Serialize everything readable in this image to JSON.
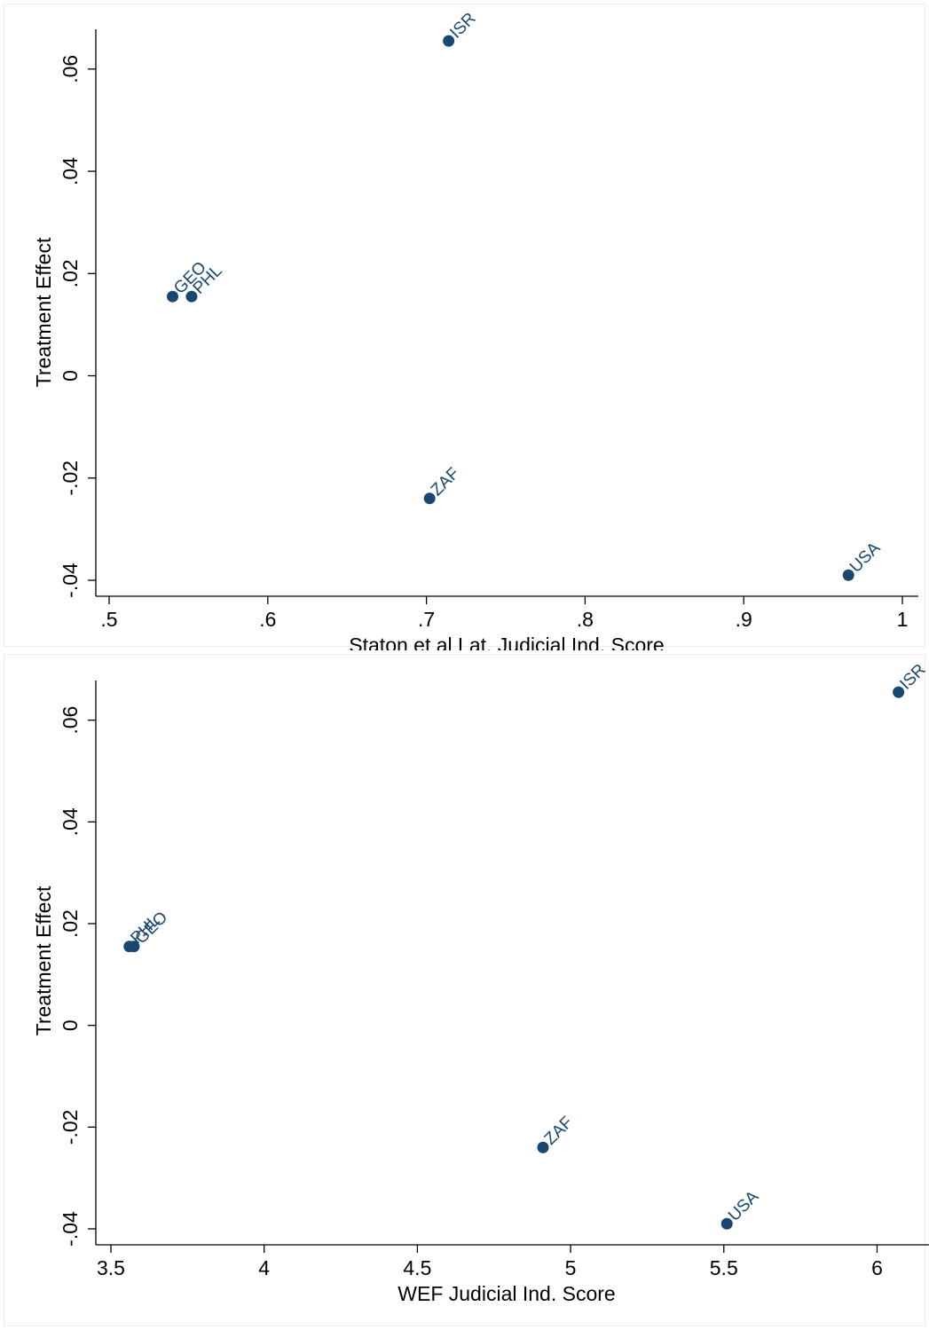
{
  "chart_data": [
    {
      "type": "scatter",
      "xlabel": "Staton et al Lat. Judicial Ind. Score",
      "ylabel": "Treatment Effect",
      "xlim": [
        0.5,
        1.0
      ],
      "ylim": [
        -0.04,
        0.065
      ],
      "x_ticks": [
        0.5,
        0.6,
        0.7,
        0.8,
        0.9,
        1.0
      ],
      "x_tick_labels": [
        ".5",
        ".6",
        ".7",
        ".8",
        ".9",
        "1"
      ],
      "y_ticks": [
        -0.04,
        -0.02,
        0,
        0.02,
        0.04,
        0.06
      ],
      "y_tick_labels": [
        "-.04",
        "-.02",
        "0",
        ".02",
        ".04",
        ".06"
      ],
      "marker_color": "#1a476f",
      "points": [
        {
          "label": "ISR",
          "x": 0.714,
          "y": 0.0655
        },
        {
          "label": "GEO",
          "x": 0.54,
          "y": 0.0155
        },
        {
          "label": "PHL",
          "x": 0.552,
          "y": 0.0155
        },
        {
          "label": "ZAF",
          "x": 0.702,
          "y": -0.024
        },
        {
          "label": "USA",
          "x": 0.966,
          "y": -0.039
        }
      ]
    },
    {
      "type": "scatter",
      "xlabel": "WEF Judicial Ind. Score",
      "ylabel": "Treatment Effect",
      "xlim": [
        3.5,
        6.1
      ],
      "ylim": [
        -0.04,
        0.065
      ],
      "x_ticks": [
        3.5,
        4,
        4.5,
        5,
        5.5,
        6
      ],
      "x_tick_labels": [
        "3.5",
        "4",
        "4.5",
        "5",
        "5.5",
        "6"
      ],
      "y_ticks": [
        -0.04,
        -0.02,
        0,
        0.02,
        0.04,
        0.06
      ],
      "y_tick_labels": [
        "-.04",
        "-.02",
        "0",
        ".02",
        ".04",
        ".06"
      ],
      "marker_color": "#1a476f",
      "points": [
        {
          "label": "ISR",
          "x": 6.07,
          "y": 0.0655
        },
        {
          "label": "PHL",
          "x": 3.56,
          "y": 0.0155
        },
        {
          "label": "GEO",
          "x": 3.575,
          "y": 0.0155
        },
        {
          "label": "ZAF",
          "x": 4.91,
          "y": -0.024
        },
        {
          "label": "USA",
          "x": 5.51,
          "y": -0.039
        }
      ]
    }
  ]
}
